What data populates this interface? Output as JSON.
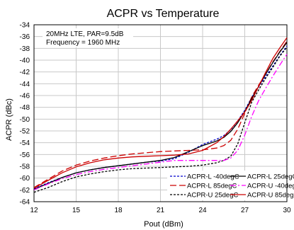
{
  "chart_data": {
    "type": "line",
    "title": "ACPR vs Temperature",
    "xlabel": "Pout (dBm)",
    "ylabel": "ACPR (dBc)",
    "xlim": [
      12,
      30
    ],
    "ylim": [
      -64,
      -34
    ],
    "xticks": [
      12,
      15,
      18,
      21,
      24,
      27,
      30
    ],
    "yticks": [
      -34,
      -36,
      -38,
      -40,
      -42,
      -44,
      -46,
      -48,
      -50,
      -52,
      -54,
      -56,
      -58,
      -60,
      -62,
      -64
    ],
    "grid": true,
    "legend_position": "bottom-right",
    "annotation": [
      "20MHz LTE, PAR=9.5dB",
      "Frequency = 1960 MHz"
    ],
    "series": [
      {
        "name": "ACPR-L -40degC",
        "color": "#0000cc",
        "dash": "short-dash",
        "x": [
          12,
          13,
          14,
          15,
          16,
          17,
          18,
          19,
          20,
          21,
          22,
          23,
          24,
          25,
          25.5,
          26,
          26.5,
          27,
          27.5,
          28,
          28.5,
          29,
          29.5,
          30
        ],
        "y": [
          -61.8,
          -60.8,
          -59.9,
          -59.1,
          -58.6,
          -58.2,
          -57.9,
          -57.6,
          -57.3,
          -57.1,
          -56.7,
          -55.6,
          -54.3,
          -53.4,
          -52.8,
          -51.8,
          -50.3,
          -48.5,
          -46.3,
          -44.5,
          -42.7,
          -41.0,
          -39.2,
          -37.6
        ]
      },
      {
        "name": "ACPR-L 85degC",
        "color": "#cc0000",
        "dash": "long-dash",
        "x": [
          12,
          13,
          14,
          15,
          16,
          17,
          18,
          19,
          20,
          21,
          22,
          23,
          24,
          25,
          25.5,
          26,
          26.5,
          27,
          27.5,
          28,
          28.5,
          29,
          29.5,
          30
        ],
        "y": [
          -61.6,
          -60.2,
          -58.8,
          -57.8,
          -57.1,
          -56.6,
          -56.2,
          -55.9,
          -55.7,
          -55.5,
          -55.4,
          -55.3,
          -55.2,
          -54.9,
          -54.5,
          -53.6,
          -51.7,
          -49.0,
          -46.2,
          -44.2,
          -42.3,
          -40.3,
          -38.5,
          -36.8
        ]
      },
      {
        "name": "ACPR-U 25degC",
        "color": "#000000",
        "dash": "short-dash",
        "x": [
          12,
          13,
          14,
          15,
          16,
          17,
          18,
          19,
          20,
          21,
          22,
          23,
          24,
          25,
          25.5,
          26,
          26.5,
          27,
          27.5,
          28,
          28.5,
          29,
          29.5,
          30
        ],
        "y": [
          -62.4,
          -61.6,
          -60.6,
          -59.8,
          -59.3,
          -58.9,
          -58.6,
          -58.4,
          -58.3,
          -58.2,
          -58.1,
          -58.0,
          -57.8,
          -57.4,
          -57.0,
          -56.3,
          -54.2,
          -50.6,
          -47.1,
          -45.0,
          -43.0,
          -41.2,
          -39.3,
          -37.8
        ]
      },
      {
        "name": "ACPR-L 25degC",
        "color": "#000000",
        "dash": "solid",
        "x": [
          12,
          13,
          14,
          15,
          16,
          17,
          18,
          19,
          20,
          21,
          22,
          23,
          24,
          25,
          25.5,
          26,
          26.5,
          27,
          27.5,
          28,
          28.5,
          29,
          29.5,
          30
        ],
        "y": [
          -61.9,
          -60.9,
          -59.9,
          -59.1,
          -58.6,
          -58.2,
          -57.9,
          -57.6,
          -57.3,
          -57.0,
          -56.5,
          -55.5,
          -54.5,
          -53.7,
          -53.1,
          -52.1,
          -50.6,
          -48.7,
          -46.5,
          -44.4,
          -42.3,
          -40.4,
          -38.6,
          -37.0
        ]
      },
      {
        "name": "ACPR-U -40degC",
        "color": "#ff00ff",
        "dash": "dash-dot",
        "x": [
          12,
          13,
          14,
          15,
          16,
          17,
          18,
          19,
          20,
          21,
          22,
          23,
          24,
          25,
          25.5,
          26,
          26.5,
          27,
          27.5,
          28,
          28.5,
          29,
          29.5,
          30
        ],
        "y": [
          -62.0,
          -61.0,
          -60.1,
          -59.4,
          -58.9,
          -58.5,
          -58.2,
          -57.9,
          -57.6,
          -57.3,
          -57.0,
          -57.0,
          -57.0,
          -57.0,
          -57.0,
          -56.6,
          -55.3,
          -52.7,
          -49.5,
          -46.8,
          -44.7,
          -42.7,
          -40.8,
          -39.0
        ]
      },
      {
        "name": "ACPR-U 85degC",
        "color": "#cc0000",
        "dash": "solid",
        "x": [
          12,
          13,
          14,
          15,
          16,
          17,
          18,
          19,
          20,
          21,
          22,
          23,
          24,
          25,
          25.5,
          26,
          26.5,
          27,
          27.5,
          28,
          28.5,
          29,
          29.5,
          30
        ],
        "y": [
          -61.7,
          -60.4,
          -59.1,
          -58.1,
          -57.4,
          -56.9,
          -56.6,
          -56.4,
          -56.3,
          -56.2,
          -56.1,
          -55.9,
          -55.3,
          -54.0,
          -53.0,
          -51.7,
          -50.3,
          -48.8,
          -46.8,
          -44.4,
          -42.0,
          -39.7,
          -37.9,
          -36.2
        ]
      }
    ],
    "legend_order": [
      0,
      3,
      1,
      4,
      2,
      5
    ]
  }
}
